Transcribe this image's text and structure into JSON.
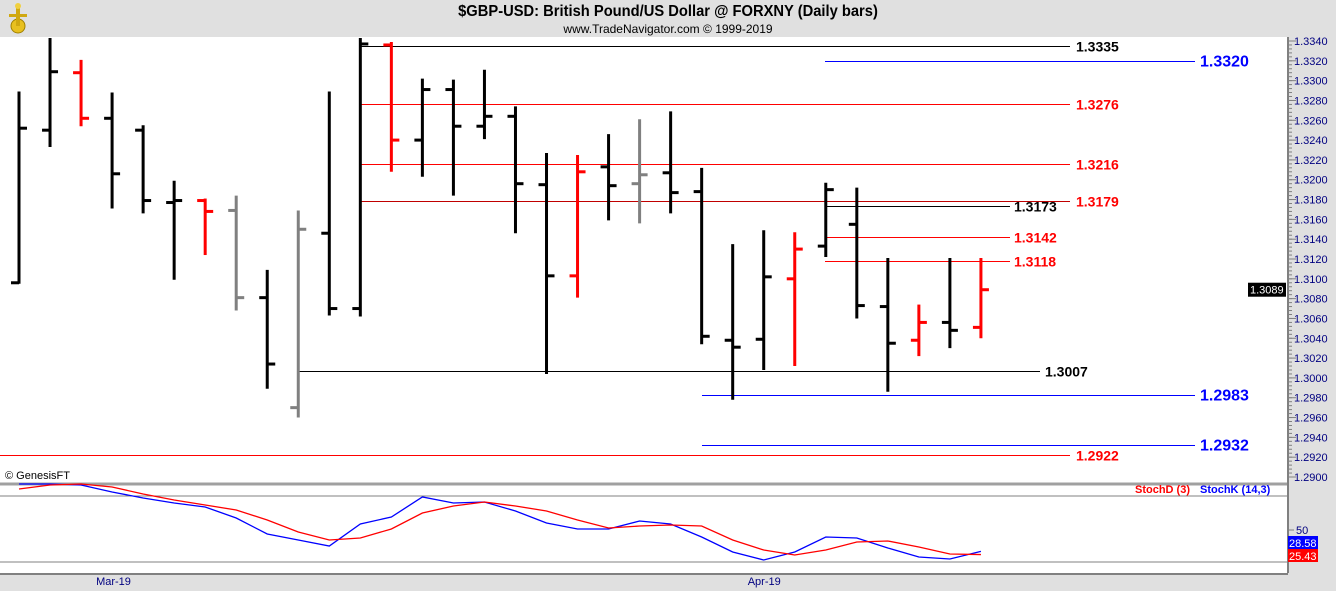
{
  "header": {
    "title": "$GBP-USD:  British Pound/US Dollar @ FORXNY  (Daily bars)",
    "subtitle": "www.TradeNavigator.com © 1999-2019",
    "copyright": "© GenesisFT"
  },
  "colors": {
    "up": "#000000",
    "down": "#ff0000",
    "neutral": "#808080",
    "blue": "#0000ff",
    "darkred": "#c00000",
    "axis_text": "#000080"
  },
  "chart_data": [
    {
      "type": "ohlc",
      "title": "$GBP-USD:  British Pound/US Dollar @ FORXNY  (Daily bars)",
      "ylim": [
        1.29,
        1.334
      ],
      "yticks": [
        "1.3340",
        "1.3320",
        "1.3300",
        "1.3280",
        "1.3260",
        "1.3240",
        "1.3220",
        "1.3200",
        "1.3180",
        "1.3160",
        "1.3140",
        "1.3120",
        "1.3100",
        "1.3080",
        "1.3060",
        "1.3040",
        "1.3020",
        "1.3000",
        "1.2980",
        "1.2960",
        "1.2940",
        "1.2920",
        "1.2900"
      ],
      "last_price": "1.3089",
      "x_labels": [
        {
          "label": "Mar-19",
          "bar": 3
        },
        {
          "label": "Apr-19",
          "bar": 24
        }
      ],
      "bars": [
        {
          "o": 1.3096,
          "h": 1.3289,
          "l": 1.3095,
          "c": 1.3252,
          "color": "black"
        },
        {
          "o": 1.325,
          "h": 1.3343,
          "l": 1.3233,
          "c": 1.3309,
          "color": "black"
        },
        {
          "o": 1.3308,
          "h": 1.3321,
          "l": 1.3254,
          "c": 1.3262,
          "color": "red"
        },
        {
          "o": 1.3262,
          "h": 1.3288,
          "l": 1.3171,
          "c": 1.3206,
          "color": "black"
        },
        {
          "o": 1.325,
          "h": 1.3255,
          "l": 1.3166,
          "c": 1.3179,
          "color": "black"
        },
        {
          "o": 1.3177,
          "h": 1.3199,
          "l": 1.3099,
          "c": 1.3179,
          "color": "black"
        },
        {
          "o": 1.3179,
          "h": 1.3181,
          "l": 1.3124,
          "c": 1.3168,
          "color": "red"
        },
        {
          "o": 1.3169,
          "h": 1.3184,
          "l": 1.3068,
          "c": 1.3081,
          "color": "gray"
        },
        {
          "o": 1.3081,
          "h": 1.3109,
          "l": 1.2989,
          "c": 1.3014,
          "color": "black"
        },
        {
          "o": 1.297,
          "h": 1.3169,
          "l": 1.296,
          "c": 1.315,
          "color": "gray"
        },
        {
          "o": 1.3146,
          "h": 1.3289,
          "l": 1.3063,
          "c": 1.307,
          "color": "black"
        },
        {
          "o": 1.307,
          "h": 1.3343,
          "l": 1.3062,
          "c": 1.3337,
          "color": "black"
        },
        {
          "o": 1.3336,
          "h": 1.3339,
          "l": 1.3208,
          "c": 1.324,
          "color": "red"
        },
        {
          "o": 1.324,
          "h": 1.3302,
          "l": 1.3203,
          "c": 1.3291,
          "color": "black"
        },
        {
          "o": 1.3291,
          "h": 1.3301,
          "l": 1.3184,
          "c": 1.3254,
          "color": "black"
        },
        {
          "o": 1.3254,
          "h": 1.3311,
          "l": 1.3241,
          "c": 1.3264,
          "color": "black"
        },
        {
          "o": 1.3264,
          "h": 1.3274,
          "l": 1.3146,
          "c": 1.3196,
          "color": "black"
        },
        {
          "o": 1.3195,
          "h": 1.3227,
          "l": 1.3004,
          "c": 1.3103,
          "color": "black"
        },
        {
          "o": 1.3103,
          "h": 1.3225,
          "l": 1.3081,
          "c": 1.3208,
          "color": "red"
        },
        {
          "o": 1.3213,
          "h": 1.3246,
          "l": 1.3159,
          "c": 1.3194,
          "color": "black"
        },
        {
          "o": 1.3196,
          "h": 1.3261,
          "l": 1.3156,
          "c": 1.3205,
          "color": "gray"
        },
        {
          "o": 1.3207,
          "h": 1.3269,
          "l": 1.3166,
          "c": 1.3187,
          "color": "black"
        },
        {
          "o": 1.3188,
          "h": 1.3212,
          "l": 1.3034,
          "c": 1.3042,
          "color": "black"
        },
        {
          "o": 1.3038,
          "h": 1.3135,
          "l": 1.2978,
          "c": 1.3031,
          "color": "black"
        },
        {
          "o": 1.3039,
          "h": 1.3149,
          "l": 1.3008,
          "c": 1.3102,
          "color": "black"
        },
        {
          "o": 1.31,
          "h": 1.3147,
          "l": 1.3012,
          "c": 1.313,
          "color": "red"
        },
        {
          "o": 1.3133,
          "h": 1.3197,
          "l": 1.3122,
          "c": 1.319,
          "color": "black"
        },
        {
          "o": 1.3155,
          "h": 1.3192,
          "l": 1.306,
          "c": 1.3073,
          "color": "black"
        },
        {
          "o": 1.3072,
          "h": 1.3121,
          "l": 1.2986,
          "c": 1.3035,
          "color": "black"
        },
        {
          "o": 1.3038,
          "h": 1.3074,
          "l": 1.3022,
          "c": 1.3056,
          "color": "red"
        },
        {
          "o": 1.3056,
          "h": 1.3121,
          "l": 1.303,
          "c": 1.3048,
          "color": "black"
        },
        {
          "o": 1.3051,
          "h": 1.3121,
          "l": 1.304,
          "c": 1.3089,
          "color": "red"
        }
      ],
      "levels": [
        {
          "label": "1.3335",
          "price": 1.3335,
          "color": "black"
        },
        {
          "label": "1.3320",
          "price": 1.332,
          "color": "blue"
        },
        {
          "label": "1.3276",
          "price": 1.3276,
          "color": "red"
        },
        {
          "label": "1.3216",
          "price": 1.3216,
          "color": "red"
        },
        {
          "label": "1.3179",
          "price": 1.3179,
          "color": "darkred"
        },
        {
          "label": "1.3173",
          "price": 1.3173,
          "color": "black"
        },
        {
          "label": "1.3142",
          "price": 1.3142,
          "color": "red"
        },
        {
          "label": "1.3118",
          "price": 1.3118,
          "color": "red"
        },
        {
          "label": "1.3007",
          "price": 1.3007,
          "color": "black"
        },
        {
          "label": "1.2983",
          "price": 1.2983,
          "color": "blue"
        },
        {
          "label": "1.2932",
          "price": 1.2932,
          "color": "blue"
        },
        {
          "label": "1.2922",
          "price": 1.2922,
          "color": "red"
        }
      ]
    },
    {
      "type": "line",
      "title": "Stochastic",
      "ylim": [
        0,
        100
      ],
      "yticks": [
        "50"
      ],
      "series": [
        {
          "name": "StochD (3)",
          "color": "#ff0000",
          "last": "25.43",
          "values": [
            91,
            95,
            96,
            93,
            86,
            80,
            75,
            70,
            60,
            48,
            40,
            42,
            51,
            67,
            74,
            78,
            74,
            69,
            60,
            52,
            54,
            55,
            54,
            40,
            30,
            25,
            30,
            38,
            39,
            33,
            26,
            25.43
          ]
        },
        {
          "name": "StochK (14,3)",
          "color": "#0000ff",
          "last": "28.58",
          "values": [
            96,
            96,
            95,
            88,
            82,
            77,
            73,
            62,
            46,
            40,
            34,
            56,
            63,
            83,
            77,
            78,
            69,
            57,
            51,
            51,
            59,
            56,
            43,
            28,
            20,
            28,
            43,
            42,
            32,
            23,
            21,
            28.58
          ]
        }
      ]
    }
  ]
}
